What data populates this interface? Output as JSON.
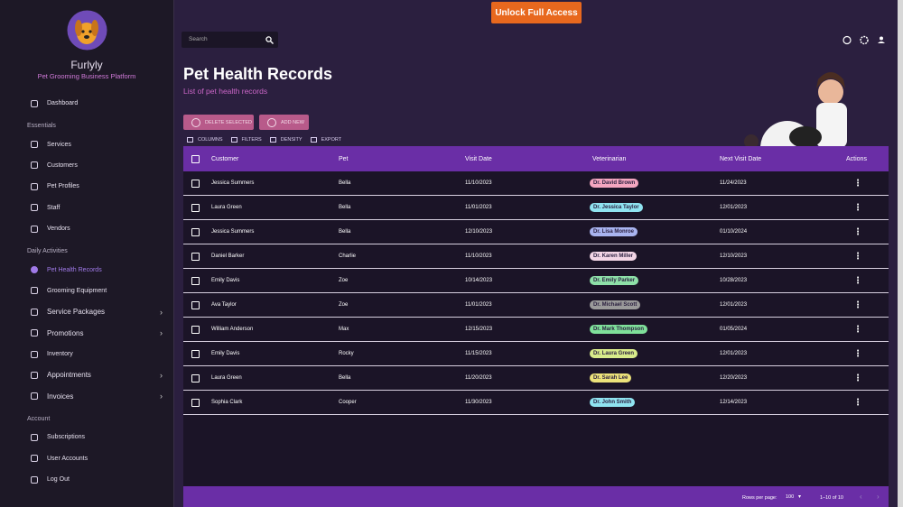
{
  "top_button": "Unlock Full Access",
  "sidebar": {
    "brand": "Furlyly",
    "tagline": "Pet Grooming Business Platform",
    "menu": [
      {
        "items": [
          {
            "label": "Dashboard"
          }
        ]
      },
      {
        "heading": "Essentials",
        "items": [
          {
            "label": "Services"
          },
          {
            "label": "Customers"
          },
          {
            "label": "Pet Profiles"
          },
          {
            "label": "Staff"
          },
          {
            "label": "Vendors"
          }
        ]
      },
      {
        "heading": "Daily Activities",
        "items": [
          {
            "label": "Pet Health Records",
            "active": true
          },
          {
            "label": "Grooming Equipment"
          },
          {
            "label": "Service Packages",
            "expandable": true
          },
          {
            "label": "Promotions",
            "expandable": true
          },
          {
            "label": "Inventory"
          },
          {
            "label": "Appointments",
            "expandable": true
          },
          {
            "label": "Invoices",
            "expandable": true
          }
        ]
      },
      {
        "heading": "Account",
        "items": [
          {
            "label": "Subscriptions"
          },
          {
            "label": "User Accounts"
          },
          {
            "label": "Log Out"
          }
        ]
      }
    ]
  },
  "search_placeholder": "Search",
  "page": {
    "title": "Pet Health Records",
    "subtitle": "List of pet health records"
  },
  "buttons": [
    "DELETE SELECTED",
    "ADD NEW"
  ],
  "toolbar": [
    "COLUMNS",
    "FILTERS",
    "DENSITY",
    "EXPORT"
  ],
  "table": {
    "columns": [
      "Customer",
      "Pet",
      "Visit Date",
      "Veterinarian",
      "Next Visit Date",
      "Actions"
    ],
    "rows": [
      [
        "Jessica Summers",
        "Bella",
        "11/10/2023",
        "Dr. David Brown",
        "11/24/2023"
      ],
      [
        "Laura Green",
        "Bella",
        "11/01/2023",
        "Dr. Jessica Taylor",
        "12/01/2023"
      ],
      [
        "Jessica Summers",
        "Bella",
        "12/10/2023",
        "Dr. Lisa Monroe",
        "01/10/2024"
      ],
      [
        "Daniel Barker",
        "Charlie",
        "11/10/2023",
        "Dr. Karen Miller",
        "12/10/2023"
      ],
      [
        "Emily Davis",
        "Zoe",
        "10/14/2023",
        "Dr. Emily Parker",
        "10/28/2023"
      ],
      [
        "Ava Taylor",
        "Zoe",
        "11/01/2023",
        "Dr. Michael Scott",
        "12/01/2023"
      ],
      [
        "William Anderson",
        "Max",
        "12/15/2023",
        "Dr. Mark Thompson",
        "01/05/2024"
      ],
      [
        "Emily Davis",
        "Rocky",
        "11/15/2023",
        "Dr. Laura Green",
        "12/01/2023"
      ],
      [
        "Laura Green",
        "Bella",
        "11/20/2023",
        "Dr. Sarah Lee",
        "12/20/2023"
      ],
      [
        "Sophia Clark",
        "Cooper",
        "11/30/2023",
        "Dr. John Smith",
        "12/14/2023"
      ]
    ],
    "chip_colors": [
      "#f4a6c0",
      "#8fe3f0",
      "#a9b4f0",
      "#f3d6e6",
      "#8ee0a8",
      "#9a9a9a",
      "#7fe09a",
      "#d8ec8a",
      "#ece27a",
      "#8fe3f0"
    ]
  },
  "pagination": {
    "rows_per_page_label": "Rows per page:",
    "rows_per_page": "100",
    "range": "1–10 of 10"
  }
}
